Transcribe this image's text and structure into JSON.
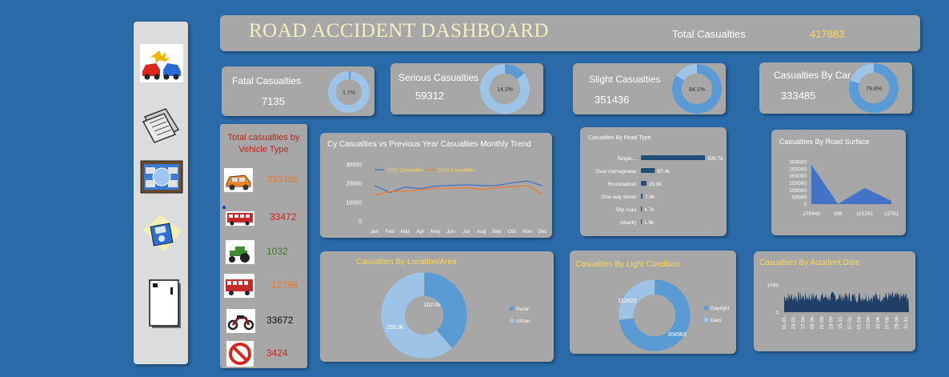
{
  "header": {
    "title": "ROAD ACCIDENT DASHBOARD",
    "total_label": "Total Casualties",
    "total_value": "417883"
  },
  "kpis": [
    {
      "label": "Fatal Casualties",
      "value": "7135",
      "pct": 1.7,
      "pct_label": "1.7%"
    },
    {
      "label": "Serious Casualties",
      "value": "59312",
      "pct": 14.2,
      "pct_label": "14.2%"
    },
    {
      "label": "Slight Casualties",
      "value": "351436",
      "pct": 84.1,
      "pct_label": "84.1%"
    },
    {
      "label": "Casualties By Car",
      "value": "333485",
      "pct": 79.8,
      "pct_label": "79.8%"
    }
  ],
  "vehicle_panel": {
    "title_line1": "Total  casualties by",
    "title_line2": "Vehicle Type",
    "items": [
      {
        "icon": "car-icon",
        "value": "333485",
        "color": "#e8792a"
      },
      {
        "icon": "bus-icon",
        "value": "33472",
        "color": "#d0211f"
      },
      {
        "icon": "tractor-icon",
        "value": "1032",
        "color": "#3f7a2a"
      },
      {
        "icon": "truck-icon",
        "value": "12798",
        "color": "#e8792a"
      },
      {
        "icon": "motorcycle-icon",
        "value": "33672",
        "color": "#111111"
      },
      {
        "icon": "no-entry-icon",
        "value": "3424",
        "color": "#d0211f"
      }
    ]
  },
  "sidebar": {
    "icons": [
      "car-crash-icon",
      "documents-icon",
      "dashboard-screen-icon",
      "save-disk-icon",
      "exit-door-icon"
    ]
  },
  "colors": {
    "background": "#2a6aa8",
    "panel": "#a7a7a7",
    "dark_blue": "#4472c4",
    "mid_blue": "#5b9bd5",
    "light_blue": "#9dc3e6",
    "orange": "#ed7d31",
    "yellow": "#ffd84d"
  },
  "chart_data": [
    {
      "id": "monthly_trend",
      "type": "line",
      "title": "Cy Casualties vs Previous Year Casualties Monthly Trend",
      "categories": [
        "Jan",
        "Feb",
        "Mar",
        "Apr",
        "May",
        "Jun",
        "Jul",
        "Aug",
        "Sep",
        "Oct",
        "Nov",
        "Dec"
      ],
      "series": [
        {
          "name": "2021 Casualties",
          "values": [
            18500,
            15000,
            17800,
            17000,
            18300,
            18700,
            19000,
            18600,
            18700,
            20000,
            21000,
            18500
          ]
        },
        {
          "name": "2022 Casualties",
          "values": [
            13500,
            15500,
            15500,
            16500,
            17000,
            17200,
            17500,
            16500,
            17500,
            18000,
            18500,
            14000
          ]
        }
      ],
      "yticks": [
        0,
        10000,
        20000,
        30000
      ],
      "ylim": [
        0,
        32000
      ],
      "legend": "top"
    },
    {
      "id": "road_type",
      "type": "bar",
      "title": "Casualties By Road Type",
      "categories": [
        "Single...",
        "Dual carriageway",
        "Roundabout",
        "One way street",
        "Slip road",
        "(blank)"
      ],
      "values": [
        309.7,
        67.4,
        26.8,
        7.4,
        4.7,
        1.9
      ],
      "labels": [
        "309.7k",
        "67.4k",
        "26.8k",
        "7.4k",
        "4.7k",
        "1.9k"
      ],
      "orientation": "horizontal"
    },
    {
      "id": "road_surface",
      "type": "area",
      "title": "Casualties By Road Surface",
      "categories": [
        "279445",
        "396",
        "115261",
        "22781"
      ],
      "values": [
        279445,
        396,
        115261,
        22781
      ],
      "yticks": [
        0,
        50000,
        100000,
        150000,
        200000,
        250000,
        300000
      ],
      "ylim": [
        0,
        300000
      ]
    },
    {
      "id": "location",
      "type": "pie",
      "title": "Casualties By Location/Area",
      "labels": [
        "Rural",
        "Urban"
      ],
      "values": [
        162.0,
        255.9
      ],
      "value_labels": [
        "162.0k",
        "255.9k"
      ],
      "legend": "right"
    },
    {
      "id": "light_condition",
      "type": "pie",
      "title": "Casualties By Light Condition",
      "labels": [
        "Daylight",
        "Dark"
      ],
      "values": [
        304963,
        112920
      ],
      "value_labels": [
        "304963",
        "112920"
      ],
      "legend": "right"
    },
    {
      "id": "accident_date",
      "type": "area",
      "title": "Casualties By Accident Date",
      "yticks": [
        0,
        1000
      ],
      "x_tick_labels": [
        "01-01-",
        "23-02-",
        "17-04-",
        "09-06-",
        "01-08-",
        "23-09-",
        "15-11-",
        "07-01-",
        "01-03-",
        "23-04-",
        "15-06-",
        "07-08-",
        "29-09-",
        "21-11-"
      ]
    }
  ]
}
